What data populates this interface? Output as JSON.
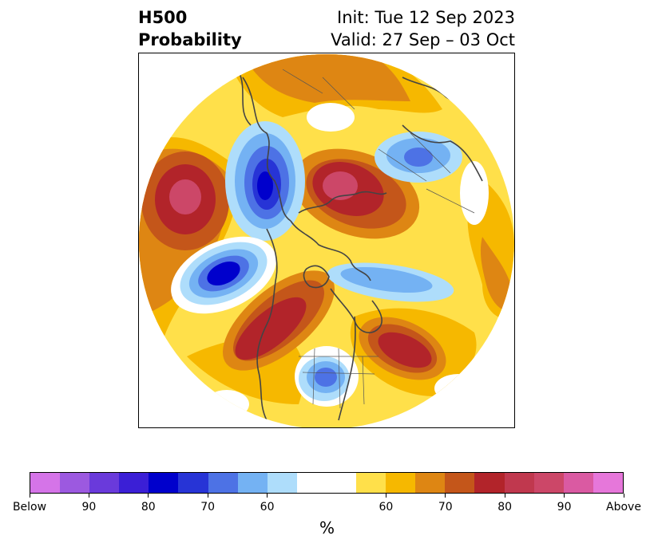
{
  "title": {
    "left_line1": "H500",
    "left_line2": "Probability",
    "right_line1": "Init: Tue 12 Sep 2023",
    "right_line2": "Valid: 27 Sep – 03 Oct"
  },
  "map": {
    "projection": "north-polar-stereographic",
    "background_fill": "#ffe04a",
    "anomalies": [
      {
        "name": "north-pacific-high",
        "category": "above",
        "level": 90,
        "shape_color_steps": [
          "#c4561a",
          "#b2242a",
          "#cc4768"
        ]
      },
      {
        "name": "west-siberia-high",
        "category": "above",
        "level": 90,
        "shape_color_steps": [
          "#de8613",
          "#c4561a",
          "#b2242a",
          "#cc4768"
        ]
      },
      {
        "name": "east-europe-low",
        "category": "below",
        "level": 70,
        "shape_color_steps": [
          "#aeddfb",
          "#74b2f3",
          "#4d72e5"
        ]
      },
      {
        "name": "east-siberia-low",
        "category": "below",
        "level": 90,
        "shape_color_steps": [
          "#aeddfb",
          "#74b2f3",
          "#4d72e5",
          "#2734d6",
          "#0000cc"
        ]
      },
      {
        "name": "gulf-of-alaska-low",
        "category": "below",
        "level": 90,
        "shape_color_steps": [
          "#aeddfb",
          "#74b2f3",
          "#4d72e5",
          "#2734d6",
          "#0000cc"
        ]
      },
      {
        "name": "western-canada-high",
        "category": "above",
        "level": 80,
        "shape_color_steps": [
          "#de8613",
          "#c4561a",
          "#b2242a"
        ]
      },
      {
        "name": "arctic-low",
        "category": "below",
        "level": 60,
        "shape_color_steps": [
          "#aeddfb",
          "#74b2f3"
        ]
      },
      {
        "name": "north-atlantic-high",
        "category": "above",
        "level": 80,
        "shape_color_steps": [
          "#de8613",
          "#c4561a",
          "#b2242a"
        ]
      },
      {
        "name": "eastern-us-low",
        "category": "below",
        "level": 70,
        "shape_color_steps": [
          "#aeddfb",
          "#74b2f3",
          "#4d72e5"
        ]
      }
    ]
  },
  "colorbar": {
    "colors": [
      "#d574e8",
      "#9c59e0",
      "#6a3adb",
      "#3b1fd6",
      "#0000cc",
      "#2734d6",
      "#4d72e5",
      "#74b2f3",
      "#aeddfb",
      "#ffffff",
      "#ffffff",
      "#ffe04a",
      "#f6b800",
      "#de8613",
      "#c4561a",
      "#b2242a",
      "#c0384e",
      "#cc4768",
      "#da5aa2",
      "#e677da"
    ],
    "tick_labels": [
      "Below",
      "90",
      "80",
      "70",
      "60",
      "60",
      "70",
      "80",
      "90",
      "Above"
    ],
    "unit": "%"
  }
}
